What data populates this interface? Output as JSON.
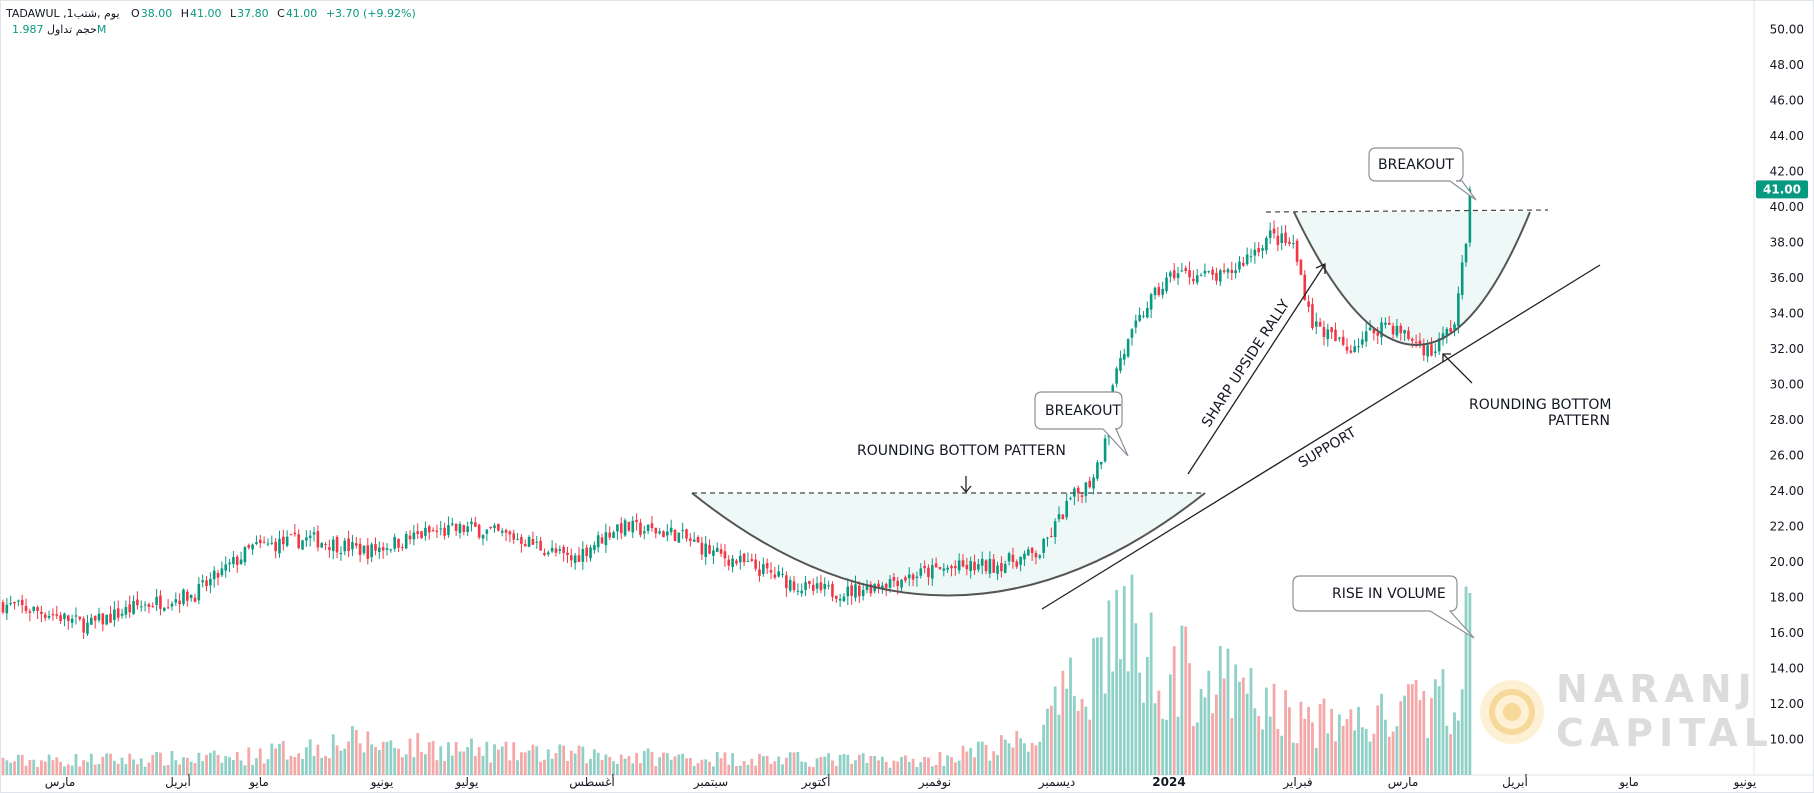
{
  "header": {
    "symbol": "TADAWUL ,1يوم ,شتب",
    "open_label": "O",
    "open": "38.00",
    "high_label": "H",
    "high": "41.00",
    "low_label": "L",
    "low": "37.80",
    "close_label": "C",
    "close": "41.00",
    "change": "+3.70 (+9.92%)",
    "volume_label": "حجم تداول",
    "volume": "1.987M"
  },
  "colors": {
    "up": "#089981",
    "down": "#f23645",
    "vol_up": "#8fd1c6",
    "vol_down": "#f4a8a8",
    "last_price_bg": "#089981"
  },
  "logo": {
    "line1": "NARANJ",
    "line2": "CAPITAL",
    "color": "#f6c970"
  },
  "chart_data": {
    "type": "candlestick",
    "ylim": [
      9,
      51
    ],
    "y_ticks": [
      "50.00",
      "48.00",
      "46.00",
      "44.00",
      "42.00",
      "40.00",
      "38.00",
      "36.00",
      "34.00",
      "32.00",
      "30.00",
      "28.00",
      "26.00",
      "24.00",
      "22.00",
      "20.00",
      "18.00",
      "16.00",
      "14.00",
      "12.00",
      "10.00"
    ],
    "last_price": "41.00",
    "x_labels": [
      "مارس",
      "أبريل",
      "مايو",
      "يونيو",
      "يوليو",
      "أغسطس",
      "سبتمبر",
      "أكتوبر",
      "نوفمبر",
      "ديسمبر",
      "2024",
      "فبراير",
      "مارس",
      "أبريل",
      "مايو",
      "يونيو"
    ],
    "x_label_bold_index": 10,
    "price_keypoints": [
      [
        0,
        17.6
      ],
      [
        12,
        17.1
      ],
      [
        22,
        16.4
      ],
      [
        35,
        17.5
      ],
      [
        50,
        18.2
      ],
      [
        65,
        20.8
      ],
      [
        80,
        21.3
      ],
      [
        95,
        20.6
      ],
      [
        110,
        21.6
      ],
      [
        122,
        21.9
      ],
      [
        135,
        21.3
      ],
      [
        148,
        20.1
      ],
      [
        160,
        22.0
      ],
      [
        175,
        21.6
      ],
      [
        185,
        20.5
      ],
      [
        198,
        19.5
      ],
      [
        210,
        18.4
      ],
      [
        220,
        18.3
      ],
      [
        232,
        19.0
      ],
      [
        245,
        19.6
      ],
      [
        258,
        19.8
      ],
      [
        270,
        20.5
      ],
      [
        278,
        23.5
      ],
      [
        283,
        24.5
      ],
      [
        286,
        26.0
      ],
      [
        290,
        31.0
      ],
      [
        298,
        34.5
      ],
      [
        305,
        36.3
      ],
      [
        318,
        36.0
      ],
      [
        330,
        38.4
      ],
      [
        336,
        37.8
      ],
      [
        341,
        33.5
      ],
      [
        350,
        32.0
      ],
      [
        360,
        33.5
      ],
      [
        372,
        31.8
      ],
      [
        378,
        33.5
      ],
      [
        381,
        38.0
      ],
      [
        382,
        41.0
      ]
    ],
    "volume_keypoints": [
      [
        0,
        0.05
      ],
      [
        60,
        0.06
      ],
      [
        90,
        0.12
      ],
      [
        130,
        0.08
      ],
      [
        180,
        0.06
      ],
      [
        240,
        0.05
      ],
      [
        268,
        0.12
      ],
      [
        282,
        0.35
      ],
      [
        290,
        0.55
      ],
      [
        300,
        0.4
      ],
      [
        320,
        0.3
      ],
      [
        340,
        0.18
      ],
      [
        360,
        0.2
      ],
      [
        378,
        0.28
      ],
      [
        382,
        0.65
      ]
    ],
    "annotations": {
      "breakout_1": "BREAKOUT",
      "rounding_bottom_1": "ROUNDING BOTTOM PATTERN",
      "sharp_rally": "SHARP UPSIDE RALLY",
      "support": "SUPPORT",
      "breakout_2": "BREAKOUT",
      "rounding_bottom_2_line1": "ROUNDING BOTTOM",
      "rounding_bottom_2_line2": "PATTERN",
      "rise_volume": "RISE IN VOLUME"
    }
  }
}
